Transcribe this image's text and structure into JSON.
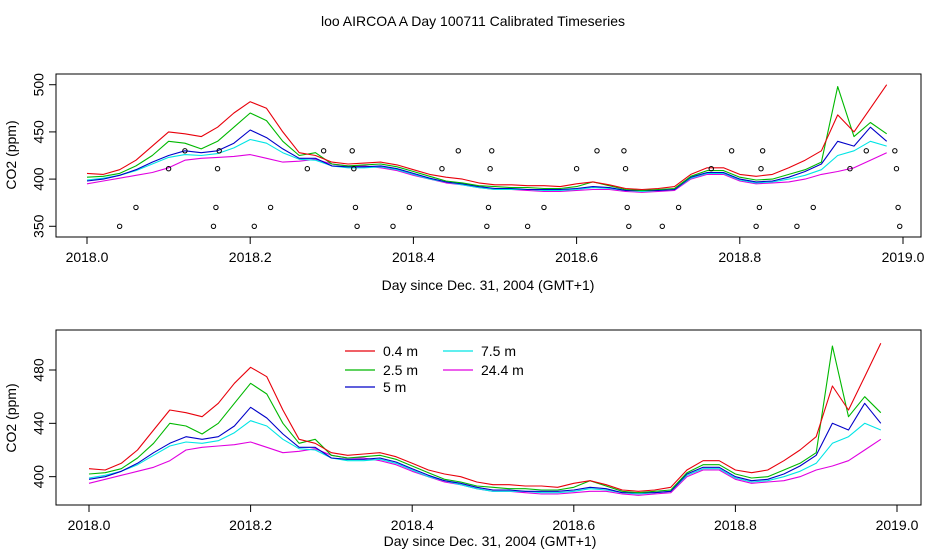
{
  "title": "loo AIRCOA A  Day 100711  Calibrated Timeseries",
  "colors": {
    "0.4 m": "#e8000b",
    "2.5 m": "#00b800",
    "5 m": "#0000c8",
    "7.5 m": "#00e5e5",
    "24.4 m": "#e000e0",
    "markers": "#000000"
  },
  "chart_data": [
    {
      "type": "line",
      "xlabel": "Day since Dec. 31, 2004 (GMT+1)",
      "ylabel": "CO2 (ppm)",
      "xlim": [
        2018.0,
        2019.0
      ],
      "ylim": [
        345,
        505
      ],
      "xticks": [
        "2018.0",
        "2018.2",
        "2018.4",
        "2018.6",
        "2018.8",
        "2019.0"
      ],
      "yticks": [
        "350",
        "400",
        "450",
        "500"
      ],
      "x": [
        2018.0,
        2018.02,
        2018.04,
        2018.06,
        2018.08,
        2018.1,
        2018.12,
        2018.14,
        2018.16,
        2018.18,
        2018.2,
        2018.22,
        2018.24,
        2018.26,
        2018.28,
        2018.3,
        2018.32,
        2018.34,
        2018.36,
        2018.38,
        2018.4,
        2018.42,
        2018.44,
        2018.46,
        2018.48,
        2018.5,
        2018.52,
        2018.54,
        2018.56,
        2018.58,
        2018.6,
        2018.62,
        2018.64,
        2018.66,
        2018.68,
        2018.7,
        2018.72,
        2018.74,
        2018.76,
        2018.78,
        2018.8,
        2018.82,
        2018.84,
        2018.86,
        2018.88,
        2018.9,
        2018.92,
        2018.94,
        2018.96,
        2018.98
      ],
      "series": [
        {
          "name": "0.4 m",
          "values": [
            406,
            405,
            410,
            420,
            435,
            450,
            448,
            445,
            455,
            470,
            482,
            475,
            450,
            428,
            425,
            418,
            416,
            417,
            418,
            415,
            410,
            405,
            402,
            400,
            396,
            394,
            394,
            393,
            393,
            392,
            395,
            397,
            394,
            390,
            389,
            390,
            392,
            405,
            412,
            412,
            405,
            403,
            405,
            412,
            420,
            430,
            468,
            450,
            475,
            500
          ]
        },
        {
          "name": "2.5 m",
          "values": [
            402,
            403,
            406,
            414,
            425,
            440,
            438,
            432,
            440,
            455,
            470,
            462,
            440,
            425,
            428,
            416,
            414,
            415,
            416,
            413,
            408,
            403,
            398,
            396,
            393,
            392,
            391,
            391,
            390,
            390,
            392,
            397,
            393,
            389,
            388,
            389,
            390,
            403,
            409,
            409,
            402,
            399,
            400,
            405,
            410,
            418,
            498,
            445,
            460,
            448
          ]
        },
        {
          "name": "5 m",
          "values": [
            398,
            400,
            404,
            410,
            418,
            425,
            430,
            428,
            430,
            438,
            452,
            444,
            432,
            422,
            422,
            414,
            413,
            413,
            414,
            411,
            406,
            401,
            397,
            395,
            392,
            390,
            390,
            389,
            389,
            389,
            390,
            392,
            391,
            388,
            388,
            388,
            389,
            402,
            407,
            407,
            400,
            397,
            398,
            402,
            408,
            416,
            440,
            435,
            455,
            440
          ]
        },
        {
          "name": "7.5 m",
          "values": [
            399,
            401,
            404,
            409,
            416,
            423,
            426,
            425,
            427,
            433,
            442,
            438,
            428,
            421,
            420,
            414,
            412,
            412,
            413,
            410,
            405,
            400,
            397,
            394,
            391,
            389,
            389,
            389,
            388,
            388,
            389,
            391,
            390,
            388,
            387,
            388,
            389,
            401,
            406,
            406,
            399,
            396,
            397,
            400,
            404,
            410,
            425,
            430,
            440,
            435
          ]
        },
        {
          "name": "24.4 m",
          "values": [
            395,
            398,
            401,
            404,
            407,
            412,
            420,
            422,
            423,
            424,
            426,
            422,
            418,
            419,
            421,
            416,
            414,
            414,
            412,
            409,
            404,
            400,
            396,
            394,
            391,
            389,
            389,
            388,
            387,
            387,
            388,
            389,
            389,
            387,
            386,
            387,
            388,
            400,
            405,
            405,
            398,
            395,
            396,
            397,
            400,
            405,
            408,
            412,
            420,
            428
          ]
        }
      ],
      "markers": [
        {
          "x": 2018.04,
          "y": 350
        },
        {
          "x": 2018.06,
          "y": 370
        },
        {
          "x": 2018.1,
          "y": 411
        },
        {
          "x": 2018.12,
          "y": 430
        },
        {
          "x": 2018.155,
          "y": 350
        },
        {
          "x": 2018.158,
          "y": 370
        },
        {
          "x": 2018.16,
          "y": 411
        },
        {
          "x": 2018.162,
          "y": 430
        },
        {
          "x": 2018.205,
          "y": 350
        },
        {
          "x": 2018.225,
          "y": 370
        },
        {
          "x": 2018.27,
          "y": 411
        },
        {
          "x": 2018.29,
          "y": 430
        },
        {
          "x": 2018.325,
          "y": 430
        },
        {
          "x": 2018.327,
          "y": 411
        },
        {
          "x": 2018.329,
          "y": 370
        },
        {
          "x": 2018.331,
          "y": 350
        },
        {
          "x": 2018.375,
          "y": 350
        },
        {
          "x": 2018.395,
          "y": 370
        },
        {
          "x": 2018.435,
          "y": 411
        },
        {
          "x": 2018.455,
          "y": 430
        },
        {
          "x": 2018.49,
          "y": 350
        },
        {
          "x": 2018.492,
          "y": 370
        },
        {
          "x": 2018.494,
          "y": 411
        },
        {
          "x": 2018.496,
          "y": 430
        },
        {
          "x": 2018.54,
          "y": 350
        },
        {
          "x": 2018.56,
          "y": 370
        },
        {
          "x": 2018.6,
          "y": 411
        },
        {
          "x": 2018.625,
          "y": 430
        },
        {
          "x": 2018.658,
          "y": 430
        },
        {
          "x": 2018.66,
          "y": 411
        },
        {
          "x": 2018.662,
          "y": 370
        },
        {
          "x": 2018.664,
          "y": 350
        },
        {
          "x": 2018.705,
          "y": 350
        },
        {
          "x": 2018.725,
          "y": 370
        },
        {
          "x": 2018.765,
          "y": 411
        },
        {
          "x": 2018.79,
          "y": 430
        },
        {
          "x": 2018.82,
          "y": 350
        },
        {
          "x": 2018.824,
          "y": 370
        },
        {
          "x": 2018.826,
          "y": 411
        },
        {
          "x": 2018.828,
          "y": 430
        },
        {
          "x": 2018.87,
          "y": 350
        },
        {
          "x": 2018.89,
          "y": 370
        },
        {
          "x": 2018.935,
          "y": 411
        },
        {
          "x": 2018.955,
          "y": 430
        },
        {
          "x": 2018.99,
          "y": 430
        },
        {
          "x": 2018.992,
          "y": 411
        },
        {
          "x": 2018.994,
          "y": 370
        },
        {
          "x": 2018.996,
          "y": 350
        }
      ]
    },
    {
      "type": "line",
      "xlabel": "Day since Dec. 31, 2004 (GMT+1)",
      "ylabel": "CO2 (ppm)",
      "xlim": [
        2018.0,
        2019.0
      ],
      "ylim": [
        384,
        504
      ],
      "xticks": [
        "2018.0",
        "2018.2",
        "2018.4",
        "2018.6",
        "2018.8",
        "2019.0"
      ],
      "yticks": [
        "400",
        "440",
        "480"
      ],
      "legend": {
        "placement": "top-left",
        "entries": [
          "0.4 m",
          "2.5 m",
          "5 m",
          "7.5 m",
          "24.4 m"
        ]
      },
      "uses_series_of_panel": 0
    }
  ]
}
